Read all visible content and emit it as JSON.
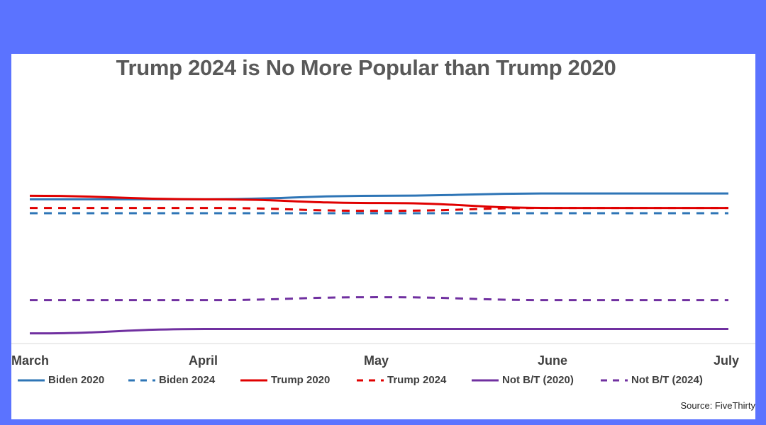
{
  "chart_data": {
    "type": "line",
    "title": "Trump 2024 is No More Popular than Trump 2020",
    "categories": [
      "March",
      "April",
      "May",
      "June",
      "July"
    ],
    "ylim": [
      0,
      100
    ],
    "grid": false,
    "legend": "bottom",
    "series": [
      {
        "name": "Biden 2020",
        "color": "#2E75B6",
        "style": "solid",
        "values": [
          49.8,
          49.8,
          51.0,
          51.8,
          51.8
        ]
      },
      {
        "name": "Biden 2024",
        "color": "#2E75B6",
        "style": "dashed",
        "values": [
          45.0,
          45.0,
          45.0,
          45.0,
          45.0
        ]
      },
      {
        "name": "Trump 2020",
        "color": "#E00000",
        "style": "solid",
        "values": [
          51.0,
          49.8,
          48.5,
          46.8,
          46.8
        ]
      },
      {
        "name": "Trump 2024",
        "color": "#E00000",
        "style": "dashed",
        "values": [
          46.8,
          46.8,
          45.8,
          46.8,
          46.8
        ]
      },
      {
        "name": "Not B/T (2020)",
        "color": "#7030A0",
        "style": "solid",
        "values": [
          3.5,
          5.0,
          5.0,
          5.0,
          5.0
        ]
      },
      {
        "name": "Not B/T (2024)",
        "color": "#7030A0",
        "style": "dashed",
        "values": [
          15.0,
          15.0,
          16.0,
          15.0,
          15.0
        ]
      }
    ],
    "source": "Source: FiveThirty"
  }
}
